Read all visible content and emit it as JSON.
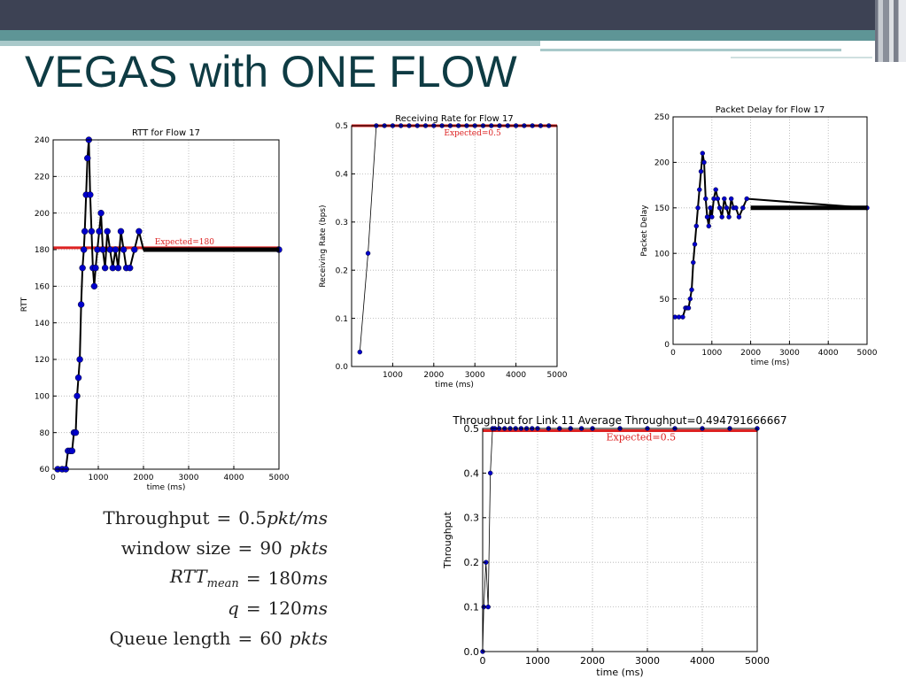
{
  "slide": {
    "title": "VEGAS with ONE FLOW"
  },
  "equations": [
    {
      "lhs": "Throughput",
      "rhs_num": "0.5",
      "rhs_unit": "pkt/ms"
    },
    {
      "lhs": "window size",
      "rhs_num": "90",
      "rhs_unit": "pkts"
    },
    {
      "lhs_italic": "RTT",
      "lhs_sub": "mean",
      "rhs_num": "180",
      "rhs_unit": "ms"
    },
    {
      "lhs_italic": "q",
      "rhs_num": "120",
      "rhs_unit": "ms"
    },
    {
      "lhs": "Queue length",
      "rhs_num": "60",
      "rhs_unit": "pkts"
    }
  ],
  "colors": {
    "series": "#0000cc",
    "expected": "#dd2222",
    "step": "#000000",
    "grid": "#b0b0b0",
    "title": "#0e3b43"
  },
  "chart_data": [
    {
      "id": "rtt",
      "type": "line",
      "title": "RTT for Flow 17",
      "xlabel": "time (ms)",
      "ylabel": "RTT",
      "xlim": [
        0,
        5000
      ],
      "ylim": [
        60,
        240
      ],
      "xticks": [
        0,
        1000,
        2000,
        3000,
        4000,
        5000
      ],
      "yticks": [
        60,
        80,
        100,
        120,
        140,
        160,
        180,
        200,
        220,
        240
      ],
      "grid": true,
      "expected": {
        "value": 181,
        "label": "Expected=180"
      },
      "series": [
        {
          "x": [
            100,
            200,
            280,
            330,
            380,
            420,
            460,
            500,
            530,
            560,
            590,
            620,
            650,
            680,
            700,
            730,
            760,
            790,
            820,
            850,
            880,
            910,
            940,
            980,
            1020,
            1060,
            1100,
            1150,
            1200,
            1260,
            1320,
            1380,
            1440,
            1500,
            1560,
            1620,
            1700,
            1800,
            1900,
            2000,
            5000
          ],
          "y": [
            60,
            60,
            60,
            70,
            70,
            70,
            80,
            80,
            100,
            110,
            120,
            150,
            170,
            180,
            190,
            210,
            230,
            240,
            210,
            190,
            170,
            160,
            170,
            180,
            190,
            200,
            180,
            170,
            190,
            180,
            170,
            180,
            170,
            190,
            180,
            170,
            170,
            180,
            190,
            180,
            180
          ]
        }
      ]
    },
    {
      "id": "rate",
      "type": "line",
      "title": "Receiving Rate for Flow 17",
      "xlabel": "time (ms)",
      "ylabel": "Receiving Rate (bps)",
      "xlim": [
        0,
        5000
      ],
      "ylim": [
        0.0,
        0.5
      ],
      "xticks": [
        1000,
        2000,
        3000,
        4000,
        5000
      ],
      "yticks": [
        0.0,
        0.1,
        0.2,
        0.3,
        0.4,
        0.5
      ],
      "grid": true,
      "expected": {
        "value": 0.5,
        "label": "Expected=0.5"
      },
      "series": [
        {
          "x": [
            200,
            400,
            600,
            800,
            1000,
            1200,
            1400,
            1600,
            1800,
            2000,
            2200,
            2400,
            2600,
            2800,
            3000,
            3200,
            3400,
            3600,
            3800,
            4000,
            4200,
            4400,
            4600,
            4800
          ],
          "y": [
            0.03,
            0.235,
            0.5,
            0.5,
            0.5,
            0.5,
            0.5,
            0.5,
            0.5,
            0.5,
            0.5,
            0.5,
            0.5,
            0.5,
            0.5,
            0.5,
            0.5,
            0.5,
            0.5,
            0.5,
            0.5,
            0.5,
            0.5,
            0.5
          ]
        }
      ]
    },
    {
      "id": "delay",
      "type": "line",
      "title": "Packet Delay for Flow 17",
      "xlabel": "time (ms)",
      "ylabel": "Packet Delay",
      "xlim": [
        0,
        5000
      ],
      "ylim": [
        0,
        250
      ],
      "xticks": [
        0,
        1000,
        2000,
        3000,
        4000,
        5000
      ],
      "yticks": [
        0,
        50,
        100,
        150,
        200,
        250
      ],
      "grid": true,
      "series": [
        {
          "x": [
            50,
            150,
            250,
            320,
            360,
            400,
            440,
            480,
            520,
            560,
            600,
            640,
            680,
            720,
            760,
            800,
            840,
            880,
            920,
            960,
            1000,
            1050,
            1100,
            1150,
            1200,
            1260,
            1320,
            1380,
            1440,
            1500,
            1560,
            1620,
            1700,
            1800,
            1900,
            5000
          ],
          "y": [
            30,
            30,
            30,
            40,
            40,
            40,
            50,
            60,
            90,
            110,
            130,
            150,
            170,
            190,
            210,
            200,
            160,
            140,
            130,
            150,
            140,
            160,
            170,
            160,
            150,
            140,
            160,
            150,
            140,
            160,
            150,
            150,
            140,
            150,
            160,
            150
          ]
        }
      ]
    },
    {
      "id": "throughput",
      "type": "line",
      "title": "Throughput for Link 11     Average Throughput=0.494791666667",
      "xlabel": "time (ms)",
      "ylabel": "Throughput",
      "xlim": [
        0,
        5000
      ],
      "ylim": [
        0.0,
        0.5
      ],
      "xticks": [
        0,
        1000,
        2000,
        3000,
        4000,
        5000
      ],
      "yticks": [
        0.0,
        0.1,
        0.2,
        0.3,
        0.4,
        0.5
      ],
      "grid": true,
      "expected": {
        "value": 0.495,
        "label": "Expected=0.5"
      },
      "series": [
        {
          "x": [
            0,
            20,
            60,
            100,
            140,
            180,
            220,
            300,
            400,
            500,
            600,
            700,
            800,
            900,
            1000,
            1200,
            1400,
            1600,
            1800,
            2000,
            2500,
            3000,
            3500,
            4000,
            4500,
            5000
          ],
          "y": [
            0.0,
            0.1,
            0.2,
            0.1,
            0.4,
            0.5,
            0.5,
            0.5,
            0.5,
            0.5,
            0.5,
            0.5,
            0.5,
            0.5,
            0.5,
            0.5,
            0.5,
            0.5,
            0.5,
            0.5,
            0.5,
            0.5,
            0.5,
            0.5,
            0.5,
            0.5
          ]
        }
      ]
    }
  ]
}
